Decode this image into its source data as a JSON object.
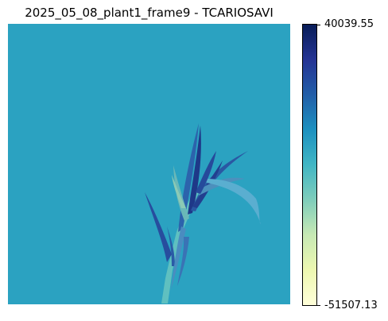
{
  "figure": {
    "title": "2025_05_08_plant1_frame9 - TCARIOSAVI",
    "background_color": "#2ba2c1",
    "colormap": "YlGnBu"
  },
  "colorbar": {
    "max_label": "40039.55",
    "min_label": "-51507.13",
    "range": [
      -51507.13,
      40039.55
    ],
    "colors": [
      "#ffffd9",
      "#edf8b1",
      "#c7e9b4",
      "#7fcdbb",
      "#41b6c4",
      "#1d91c0",
      "#225ea8",
      "#253494",
      "#081d58"
    ]
  }
}
